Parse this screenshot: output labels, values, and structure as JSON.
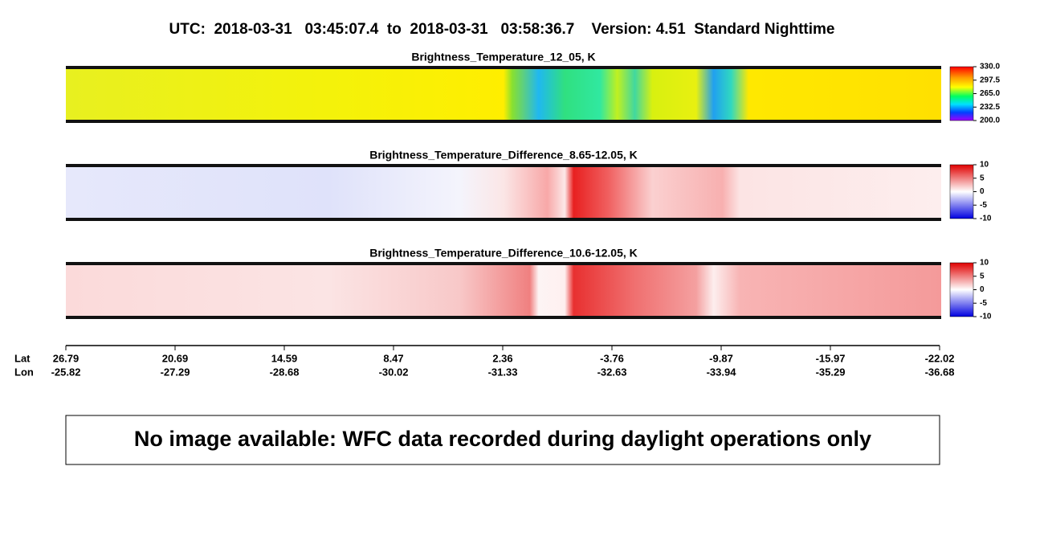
{
  "title": "UTC:  2018-03-31   03:45:07.4  to  2018-03-31   03:58:36.7    Version: 4.51  Standard Nighttime",
  "panels": [
    {
      "title": "Brightness_Temperature_12_05, K",
      "colorbar_ticks": [
        {
          "value": 330,
          "label": "330.0"
        },
        {
          "value": 297.5,
          "label": "297.5"
        },
        {
          "value": 265,
          "label": "265.0"
        },
        {
          "value": 232.5,
          "label": "232.5"
        },
        {
          "value": 200,
          "label": "200.0"
        }
      ]
    },
    {
      "title": "Brightness_Temperature_Difference_8.65-12.05, K",
      "colorbar_ticks": [
        10,
        5,
        0,
        -5,
        -10
      ]
    },
    {
      "title": "Brightness_Temperature_Difference_10.6-12.05, K",
      "colorbar_ticks": [
        10,
        5,
        0,
        -5,
        -10
      ]
    }
  ],
  "axis": {
    "lat_label": "Lat",
    "lon_label": "Lon",
    "lat": [
      26.79,
      20.69,
      14.59,
      8.47,
      2.36,
      -3.76,
      -9.87,
      -15.97,
      -22.02
    ],
    "lon": [
      -25.82,
      -27.29,
      -28.68,
      -30.02,
      -31.33,
      -32.63,
      -33.94,
      -35.29,
      -36.68
    ]
  },
  "message": "No image available: WFC data recorded during daylight operations only"
}
